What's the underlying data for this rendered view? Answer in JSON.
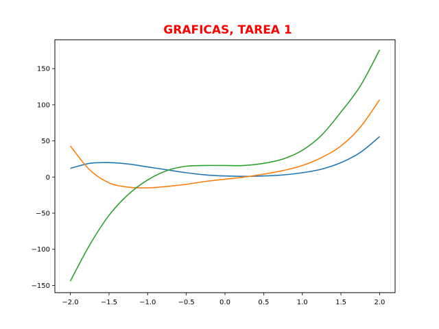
{
  "chart_data": {
    "type": "line",
    "title": "GRAFICAS, TAREA 1",
    "title_color": "#ff0000",
    "xlabel": "",
    "ylabel": "",
    "xlim": [
      -2.2,
      2.2
    ],
    "ylim": [
      -160,
      190
    ],
    "xticks": [
      -2.0,
      -1.5,
      -1.0,
      -0.5,
      0.0,
      0.5,
      1.0,
      1.5,
      2.0
    ],
    "xtick_labels": [
      "−2.0",
      "−1.5",
      "−1.0",
      "−0.5",
      "0.0",
      "0.5",
      "1.0",
      "1.5",
      "2.0"
    ],
    "yticks": [
      -150,
      -100,
      -50,
      0,
      50,
      100,
      150
    ],
    "ytick_labels": [
      "−150",
      "−100",
      "−50",
      "0",
      "50",
      "100",
      "150"
    ],
    "grid": false,
    "x": [
      -2.0,
      -1.75,
      -1.5,
      -1.25,
      -1.0,
      -0.75,
      -0.5,
      -0.25,
      0.0,
      0.25,
      0.5,
      0.75,
      1.0,
      1.25,
      1.5,
      1.75,
      2.0
    ],
    "series": [
      {
        "color": "#1f77b4",
        "values": [
          12,
          19,
          20,
          18,
          14,
          10,
          6,
          3,
          1.5,
          1,
          1.5,
          3,
          6,
          11,
          20,
          34,
          56
        ]
      },
      {
        "color": "#ff7f0e",
        "values": [
          43,
          10,
          -8,
          -14,
          -15,
          -13,
          -10,
          -6,
          -3,
          0,
          4,
          9,
          16,
          27,
          43,
          69,
          107
        ]
      },
      {
        "color": "#2ca02c",
        "values": [
          -144,
          -94,
          -53,
          -24,
          -4,
          9,
          15,
          16,
          16,
          16,
          19,
          25,
          37,
          58,
          90,
          126,
          176
        ]
      }
    ]
  }
}
